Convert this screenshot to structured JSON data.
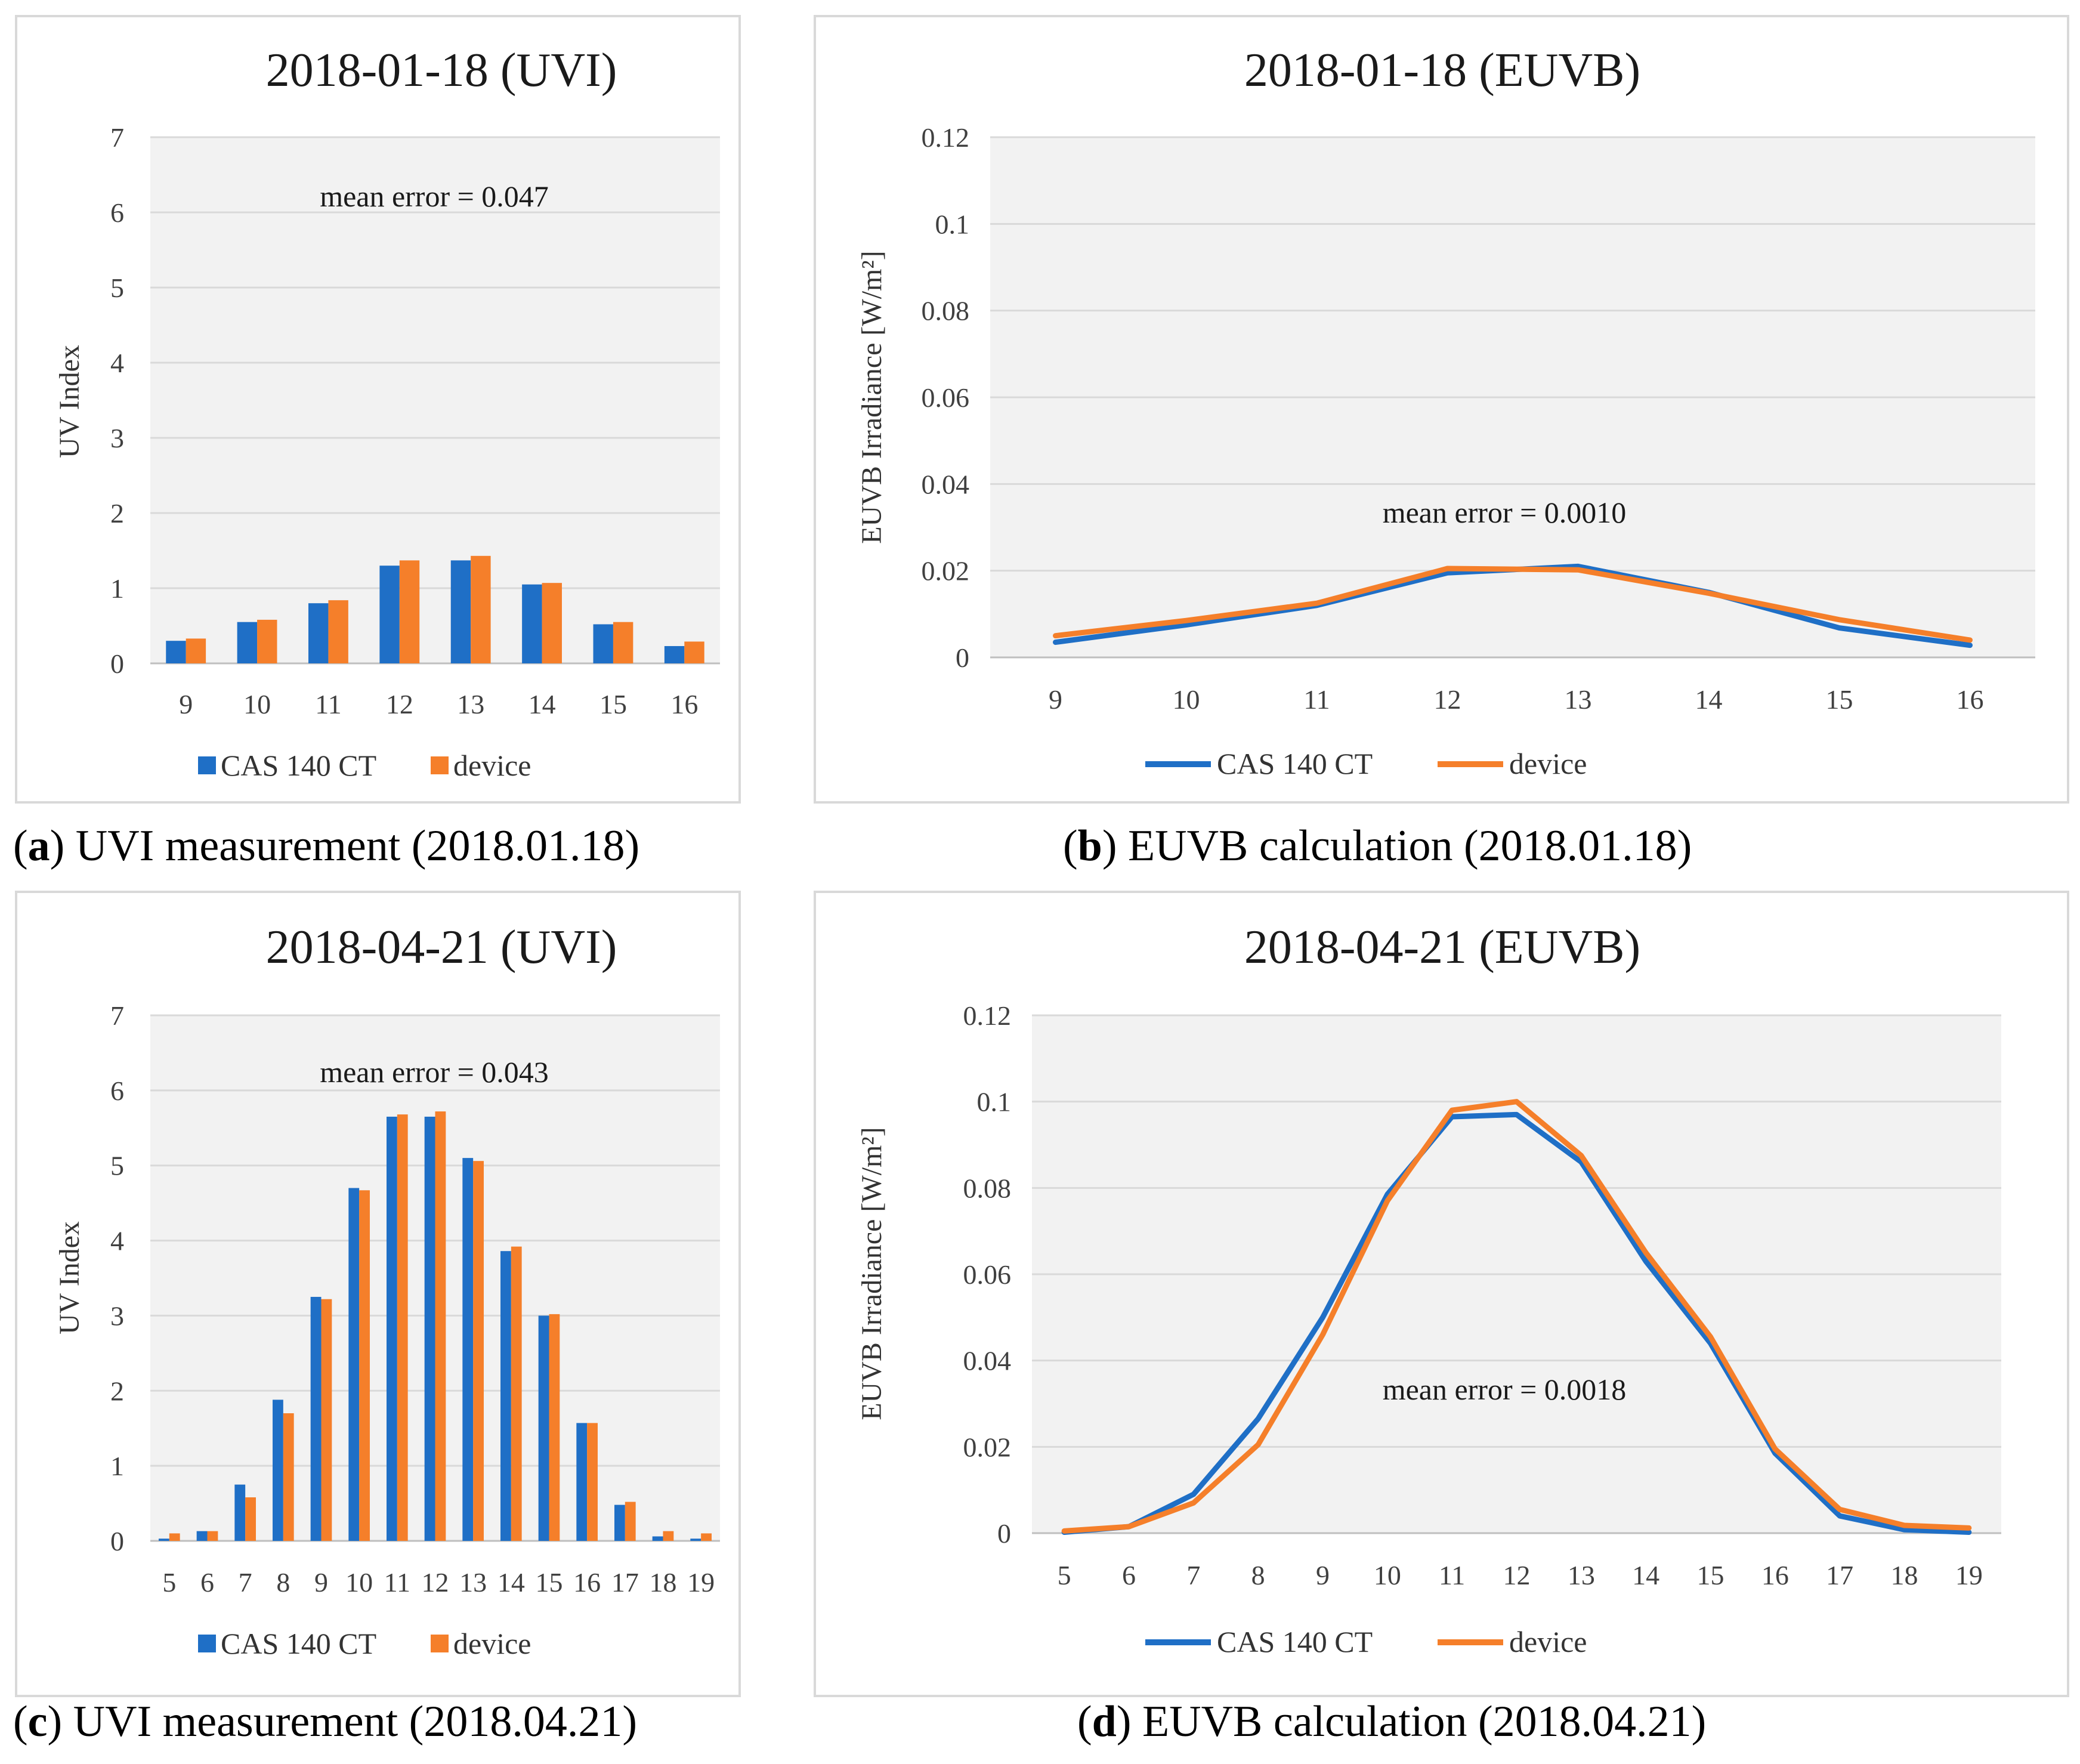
{
  "panels": [
    {
      "caption_letter": "a",
      "caption_text": ") UVI measurement (2018.01.18)",
      "chart": {
        "type": "bar",
        "title": "2018-01-18 (UVI)",
        "ylabel": "UV  Index",
        "xlabel": "",
        "ylim": [
          0,
          7
        ],
        "yticks": [
          "0",
          "1",
          "2",
          "3",
          "4",
          "5",
          "6",
          "7"
        ],
        "categories": [
          "9",
          "10",
          "11",
          "12",
          "13",
          "14",
          "15",
          "16"
        ],
        "series": [
          {
            "name": "CAS 140 CT",
            "color": "#1f6fc6",
            "values": [
              0.3,
              0.55,
              0.8,
              1.3,
              1.37,
              1.05,
              0.52,
              0.23
            ]
          },
          {
            "name": "device",
            "color": "#f57f2a",
            "values": [
              0.33,
              0.58,
              0.84,
              1.37,
              1.43,
              1.07,
              0.55,
              0.29
            ]
          }
        ],
        "annotation": "mean error = 0.047",
        "grid": true,
        "legend": "bottom"
      }
    },
    {
      "caption_letter": "b",
      "caption_text": ") EUVB calculation (2018.01.18)",
      "chart": {
        "type": "line",
        "title": "2018-01-18 (EUVB)",
        "ylabel": "EUVB Irradiance [W/m²]",
        "xlabel": "",
        "ylim": [
          0,
          0.12
        ],
        "yticks": [
          "0",
          "0.02",
          "0.04",
          "0.06",
          "0.08",
          "0.1",
          "0.12"
        ],
        "categories": [
          "9",
          "10",
          "11",
          "12",
          "13",
          "14",
          "15",
          "16"
        ],
        "series": [
          {
            "name": "CAS 140 CT",
            "color": "#1f6fc6",
            "values": [
              0.0035,
              0.0075,
              0.012,
              0.0195,
              0.021,
              0.015,
              0.0068,
              0.0028
            ]
          },
          {
            "name": "device",
            "color": "#f57f2a",
            "values": [
              0.005,
              0.0085,
              0.0125,
              0.0205,
              0.0202,
              0.0148,
              0.0087,
              0.004
            ]
          }
        ],
        "annotation": "mean error = 0.0010",
        "grid": true,
        "legend": "bottom"
      }
    },
    {
      "caption_letter": "c",
      "caption_text": ") UVI measurement (2018.04.21)",
      "chart": {
        "type": "bar",
        "title": "2018-04-21 (UVI)",
        "ylabel": "UV  Index",
        "xlabel": "",
        "ylim": [
          0,
          7
        ],
        "yticks": [
          "0",
          "1",
          "2",
          "3",
          "4",
          "5",
          "6",
          "7"
        ],
        "categories": [
          "5",
          "6",
          "7",
          "8",
          "9",
          "10",
          "11",
          "12",
          "13",
          "14",
          "15",
          "16",
          "17",
          "18",
          "19"
        ],
        "series": [
          {
            "name": "CAS 140 CT",
            "color": "#1f6fc6",
            "values": [
              0.03,
              0.13,
              0.75,
              1.88,
              3.25,
              4.7,
              5.65,
              5.65,
              5.1,
              3.86,
              3.0,
              1.57,
              0.48,
              0.06,
              0.03
            ]
          },
          {
            "name": "device",
            "color": "#f57f2a",
            "values": [
              0.1,
              0.13,
              0.58,
              1.7,
              3.22,
              4.67,
              5.68,
              5.72,
              5.06,
              3.92,
              3.02,
              1.57,
              0.52,
              0.13,
              0.1
            ]
          }
        ],
        "annotation": "mean error = 0.043",
        "grid": true,
        "legend": "bottom"
      }
    },
    {
      "caption_letter": "d",
      "caption_text": ") EUVB calculation (2018.04.21)",
      "chart": {
        "type": "line",
        "title": "2018-04-21 (EUVB)",
        "ylabel": "EUVB Irradiance [W/m²]",
        "xlabel": "",
        "ylim": [
          0,
          0.12
        ],
        "yticks": [
          "0",
          "0.02",
          "0.04",
          "0.06",
          "0.08",
          "0.1",
          "0.12"
        ],
        "categories": [
          "5",
          "6",
          "7",
          "8",
          "9",
          "10",
          "11",
          "12",
          "13",
          "14",
          "15",
          "16",
          "17",
          "18",
          "19"
        ],
        "series": [
          {
            "name": "CAS 140 CT",
            "color": "#1f6fc6",
            "values": [
              0.0002,
              0.0015,
              0.009,
              0.0265,
              0.05,
              0.0785,
              0.0965,
              0.097,
              0.086,
              0.063,
              0.044,
              0.0185,
              0.004,
              0.0008,
              0.0002
            ]
          },
          {
            "name": "device",
            "color": "#f57f2a",
            "values": [
              0.0005,
              0.0015,
              0.007,
              0.0205,
              0.046,
              0.077,
              0.098,
              0.1,
              0.0875,
              0.065,
              0.0455,
              0.0195,
              0.0055,
              0.0018,
              0.0012
            ]
          }
        ],
        "annotation": "mean error = 0.0018",
        "grid": true,
        "legend": "bottom"
      }
    }
  ]
}
